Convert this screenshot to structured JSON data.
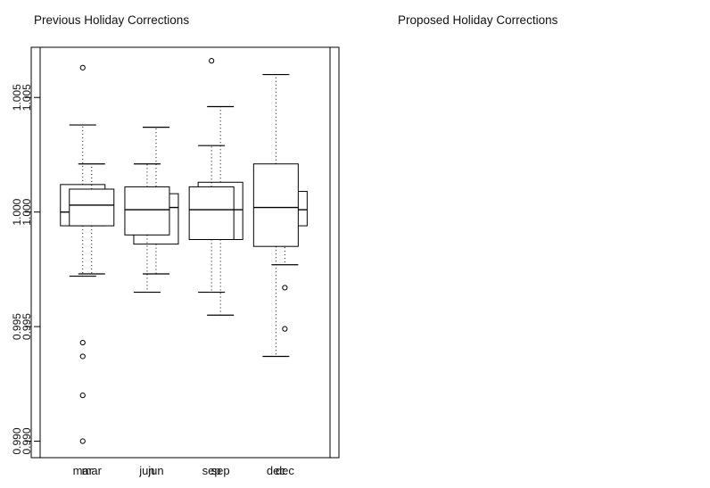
{
  "style": {
    "background": "#ffffff",
    "line_color": "#000000",
    "text_color": "#111111"
  },
  "chart_data": [
    {
      "type": "boxplot",
      "title": "Previous Holiday Corrections",
      "categories": [
        "mar",
        "jun",
        "sep",
        "dec"
      ],
      "positions": [
        1,
        2,
        3,
        4
      ],
      "xlim": [
        0.2,
        4.84
      ],
      "ylim": [
        0.98928,
        1.00719
      ],
      "yticks": [
        0.99,
        0.995,
        1.0,
        1.005
      ],
      "ytick_labels": [
        "0.990",
        "0.995",
        "1.000",
        "1.005"
      ],
      "grid": false,
      "legend": null,
      "boxes": [
        {
          "category": "mar",
          "whisker_low": 0.9972,
          "q1": 0.9994,
          "median": 1.0,
          "q3": 1.0012,
          "whisker_high": 1.0038,
          "outliers": [
            1.0063,
            0.9943,
            0.9937,
            0.992,
            0.99
          ]
        },
        {
          "category": "jun",
          "whisker_low": 0.9965,
          "q1": 0.999,
          "median": 1.0001,
          "q3": 1.0011,
          "whisker_high": 1.0021,
          "outliers": []
        },
        {
          "category": "sep",
          "whisker_low": 0.9965,
          "q1": 0.9988,
          "median": 1.0001,
          "q3": 1.0011,
          "whisker_high": 1.0029,
          "outliers": [
            1.0066
          ]
        },
        {
          "category": "dec",
          "whisker_low": 0.9937,
          "q1": 0.9985,
          "median": 1.0002,
          "q3": 1.0021,
          "whisker_high": 1.006,
          "outliers": []
        }
      ]
    },
    {
      "type": "boxplot",
      "title": "Proposed Holiday Corrections",
      "categories": [
        "mar",
        "jun",
        "sep",
        "dec"
      ],
      "positions": [
        1,
        2,
        3,
        4
      ],
      "xlim": [
        0.2,
        4.84
      ],
      "ylim": [
        0.98928,
        1.00719
      ],
      "yticks": [
        0.99,
        0.995,
        1.0,
        1.005
      ],
      "ytick_labels": [
        "0.990",
        "0.995",
        "1.000",
        "1.005"
      ],
      "grid": false,
      "legend": null,
      "boxes": [
        {
          "category": "mar",
          "whisker_low": 0.9973,
          "q1": 0.9994,
          "median": 1.0003,
          "q3": 1.001,
          "whisker_high": 1.0021,
          "outliers": []
        },
        {
          "category": "jun",
          "whisker_low": 0.9973,
          "q1": 0.9986,
          "median": 1.0002,
          "q3": 1.0008,
          "whisker_high": 1.0037,
          "outliers": []
        },
        {
          "category": "sep",
          "whisker_low": 0.9955,
          "q1": 0.9988,
          "median": 1.0001,
          "q3": 1.0013,
          "whisker_high": 1.0046,
          "outliers": []
        },
        {
          "category": "dec",
          "whisker_low": 0.9977,
          "q1": 0.9994,
          "median": 1.0001,
          "q3": 1.0009,
          "whisker_high": 1.0018,
          "outliers": [
            0.9967,
            0.9949
          ]
        }
      ]
    }
  ]
}
